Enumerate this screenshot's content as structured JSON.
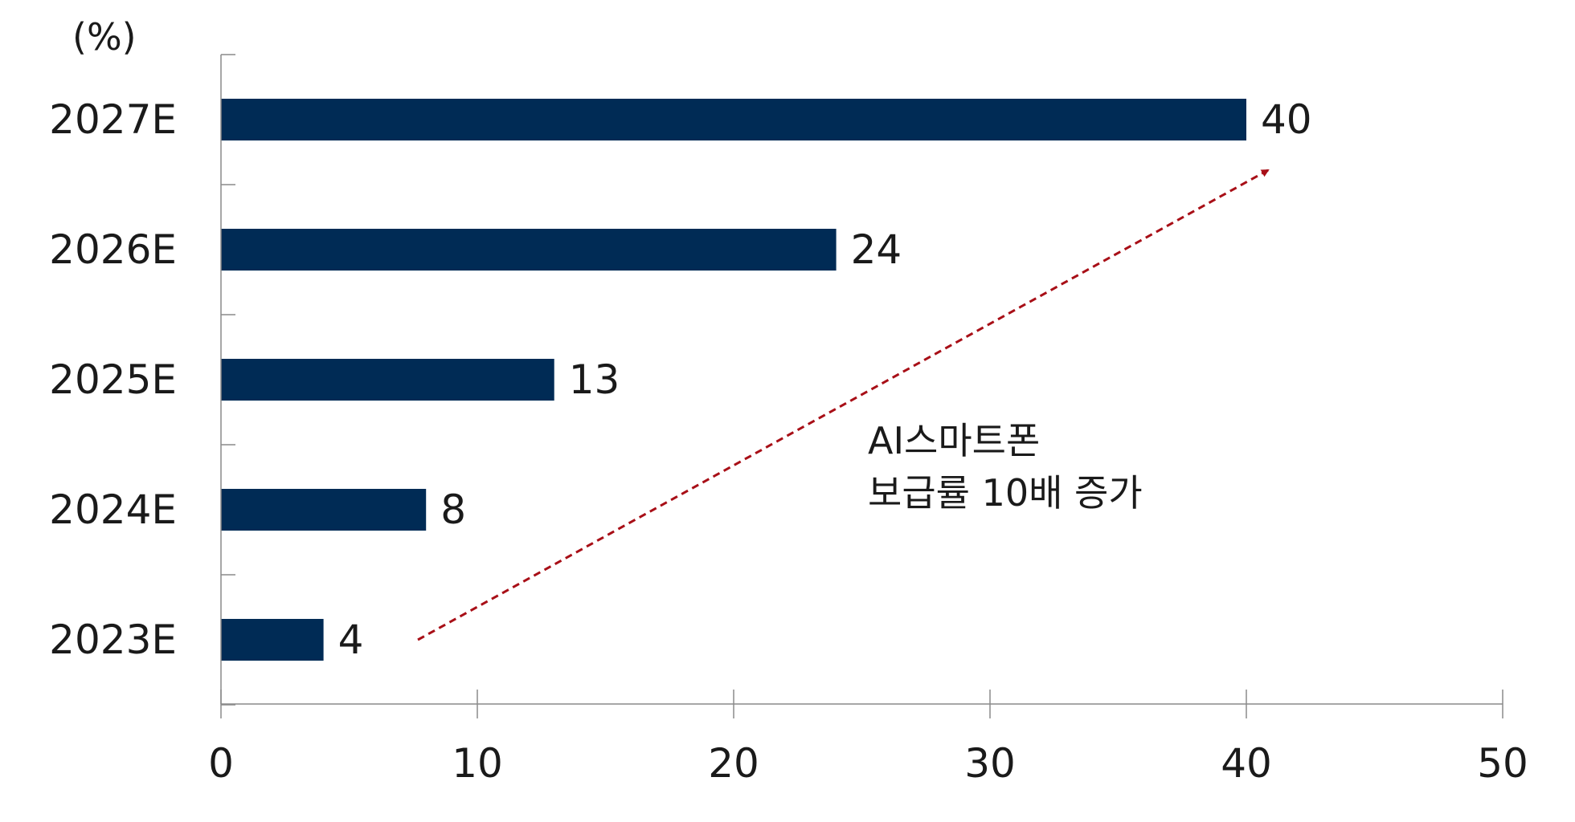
{
  "chart_data": {
    "type": "bar",
    "orientation": "horizontal",
    "unit_label": "(%)",
    "categories": [
      "2027E",
      "2026E",
      "2025E",
      "2024E",
      "2023E"
    ],
    "values": [
      40,
      24,
      13,
      8,
      4
    ],
    "data_labels": [
      "40",
      "24",
      "13",
      "8",
      "4"
    ],
    "xlim": [
      0,
      50
    ],
    "x_ticks": [
      0,
      10,
      20,
      30,
      40,
      50
    ],
    "x_tick_labels": [
      "0",
      "10",
      "20",
      "30",
      "40",
      "50"
    ],
    "grid": false,
    "bar_color": "#002b55",
    "annotation": {
      "lines": [
        "AI스마트폰",
        "보급률 10배 증가"
      ],
      "arrow_color": "#a80f17",
      "arrow_style": "dashed"
    }
  }
}
